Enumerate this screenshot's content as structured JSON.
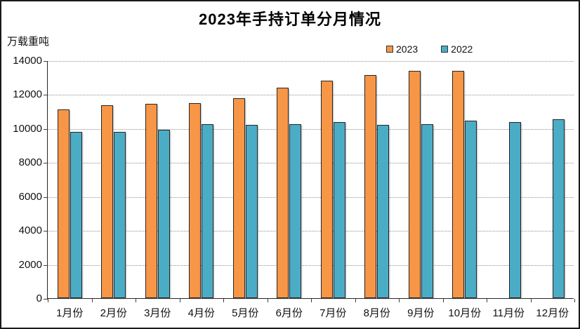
{
  "page": {
    "title": "2023年手持订单分月情况",
    "unit_label": "万载重吨"
  },
  "chart_data": {
    "type": "bar",
    "title": "2023年手持订单分月情况",
    "xlabel": "",
    "ylabel": "万载重吨",
    "categories": [
      "1月份",
      "2月份",
      "3月份",
      "4月份",
      "5月份",
      "6月份",
      "7月份",
      "8月份",
      "9月份",
      "10月份",
      "11月份",
      "12月份"
    ],
    "series": [
      {
        "name": "2023",
        "color": "#F79646",
        "border_color": "#262626",
        "values": [
          11100,
          11350,
          11450,
          11500,
          11750,
          12400,
          12800,
          13150,
          13400,
          13380,
          null,
          null
        ]
      },
      {
        "name": "2022",
        "color": "#4BACC6",
        "border_color": "#262626",
        "values": [
          9800,
          9800,
          9900,
          10250,
          10200,
          10250,
          10350,
          10200,
          10250,
          10450,
          10350,
          10550
        ]
      }
    ],
    "ylim": [
      0,
      14000
    ],
    "ytick_interval": 2000,
    "ytick_labels": [
      "0",
      "2000",
      "4000",
      "6000",
      "8000",
      "10000",
      "12000",
      "14000"
    ],
    "grid": "dotted-horizontal",
    "gridline_color": "#909090",
    "legend_position": "top-right",
    "background": "#FFFFFF",
    "frame_color": "#1A1A1A"
  }
}
